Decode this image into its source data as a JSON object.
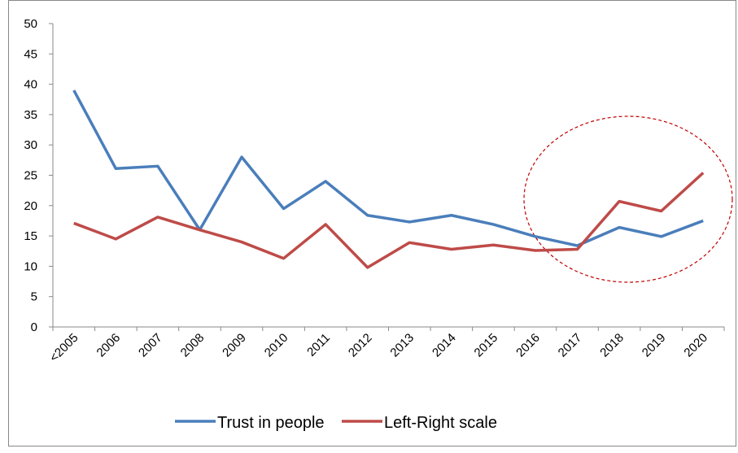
{
  "chart_data": {
    "type": "line",
    "categories": [
      "<2005",
      "2006",
      "2007",
      "2008",
      "2009",
      "2010",
      "2011",
      "2012",
      "2013",
      "2014",
      "2015",
      "2016",
      "2017",
      "2018",
      "2019",
      "2020"
    ],
    "series": [
      {
        "name": "Trust in people",
        "color": "#4a7ebb",
        "values": [
          39,
          26.1,
          26.5,
          16,
          28,
          19.5,
          24,
          18.4,
          17.3,
          18.4,
          16.9,
          14.9,
          13.4,
          16.4,
          14.9,
          17.5
        ]
      },
      {
        "name": "Left-Right scale",
        "color": "#be4b48",
        "values": [
          17.1,
          14.5,
          18.1,
          16,
          14,
          11.3,
          16.9,
          9.8,
          13.9,
          12.8,
          13.5,
          12.6,
          12.8,
          20.7,
          19.1,
          25.4
        ]
      }
    ],
    "ylim": [
      0,
      50
    ],
    "yticks": [
      0,
      5,
      10,
      15,
      20,
      25,
      30,
      35,
      40,
      45,
      50
    ],
    "grid": false,
    "legend": "bottom"
  }
}
